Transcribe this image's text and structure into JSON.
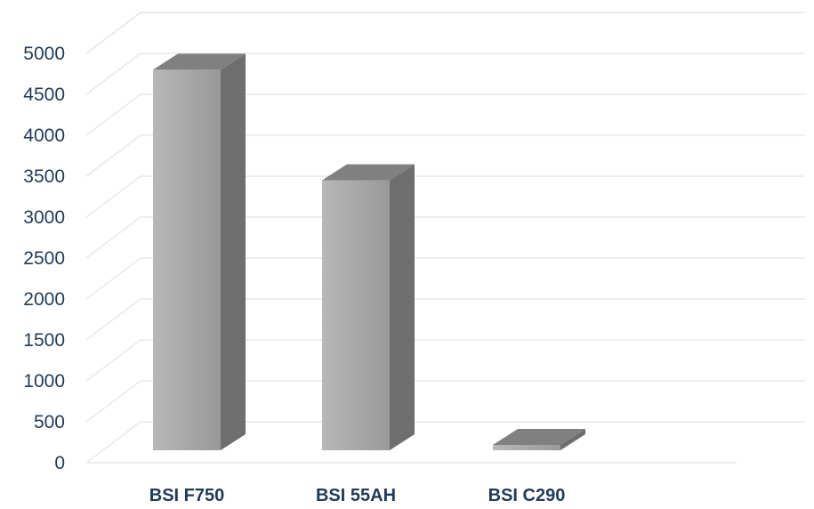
{
  "chart_data": {
    "type": "bar",
    "style": "3d-column",
    "categories": [
      "BSI F750",
      "BSI 55AH",
      "BSI C290"
    ],
    "values": [
      4800,
      3450,
      100
    ],
    "yticks": [
      0,
      500,
      1000,
      1500,
      2000,
      2500,
      3000,
      3500,
      4000,
      4500,
      5000
    ],
    "ylim": [
      0,
      5500
    ],
    "grid": true,
    "legend": "none",
    "colors": {
      "front": "#a3a3a3",
      "side": "#6e6e6e",
      "top": "#808080",
      "grid": "#e3e3e3",
      "text": "#1f3a5a"
    }
  }
}
